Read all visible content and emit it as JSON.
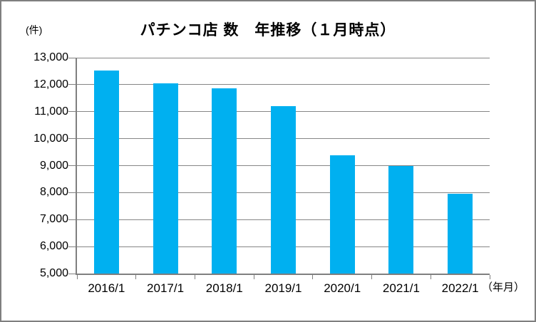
{
  "chart_data": {
    "type": "bar",
    "title": "パチンコ店 数　年推移（１月時点）",
    "y_unit_label": "(件)",
    "x_unit_label": "（年月）",
    "categories": [
      "2016/1",
      "2017/1",
      "2018/1",
      "2019/1",
      "2020/1",
      "2021/1",
      "2022/1"
    ],
    "values": [
      12530,
      12040,
      11860,
      11210,
      9370,
      8990,
      7970
    ],
    "series_name": "パチンコ店数",
    "ylim": [
      5000,
      13000
    ],
    "ytick_step": 1000,
    "ytick_labels": [
      "13,000",
      "12,000",
      "11,000",
      "10,000",
      "9,000",
      "8,000",
      "7,000",
      "6,000",
      "5,000"
    ],
    "grid": "horizontal",
    "legend": "none",
    "bar_color": "#00B0F0",
    "gridline_color": "#868686",
    "axis_color": "#7f7f7f",
    "frame_border_color": "#7f7f7f",
    "background_color": "#ffffff"
  }
}
